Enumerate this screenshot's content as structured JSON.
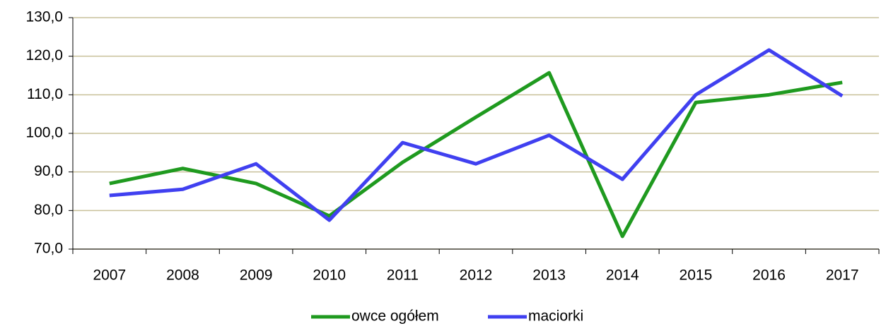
{
  "chart_data": {
    "type": "line",
    "categories": [
      "2007",
      "2008",
      "2009",
      "2010",
      "2011",
      "2012",
      "2013",
      "2014",
      "2015",
      "2016",
      "2017"
    ],
    "series": [
      {
        "name": "owce ogółem",
        "color": "#1f9a1f",
        "values": [
          87.0,
          90.9,
          87.0,
          78.6,
          92.5,
          104.2,
          115.7,
          73.3,
          108.0,
          110.0,
          113.2
        ]
      },
      {
        "name": "maciorki",
        "color": "#4040f0",
        "values": [
          83.9,
          85.5,
          92.1,
          77.5,
          97.6,
          92.1,
          99.5,
          88.1,
          110.0,
          121.6,
          109.7
        ]
      }
    ],
    "ylim": [
      70,
      130
    ],
    "yticks": [
      {
        "value": 70,
        "label": "70,0"
      },
      {
        "value": 80,
        "label": "80,0"
      },
      {
        "value": 90,
        "label": "90,0"
      },
      {
        "value": 100,
        "label": "100,0"
      },
      {
        "value": 110,
        "label": "110,0"
      },
      {
        "value": 120,
        "label": "120,0"
      },
      {
        "value": 130,
        "label": "130,0"
      }
    ],
    "grid": true,
    "legend": "bottom"
  }
}
